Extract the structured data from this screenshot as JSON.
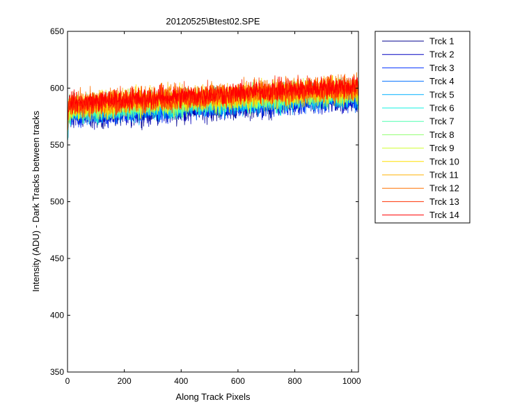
{
  "chart_data": {
    "type": "line",
    "title": "20120525\\Btest02.SPE",
    "xlabel": "Along Track Pixels",
    "ylabel": "Intensity (ADU) - Dark Tracks between tracks",
    "xlim": [
      0,
      1024
    ],
    "ylim": [
      350,
      650
    ],
    "xticks": [
      0,
      200,
      400,
      600,
      800,
      1000
    ],
    "yticks": [
      350,
      400,
      450,
      500,
      550,
      600,
      650
    ],
    "grid": false,
    "legend_position": "outside-right",
    "series": [
      {
        "name": "Trck 1",
        "color": "#00008F",
        "start": 575,
        "end": 590,
        "noise": 6
      },
      {
        "name": "Trck 2",
        "color": "#0000C0",
        "start": 576,
        "end": 591,
        "noise": 6
      },
      {
        "name": "Trck 3",
        "color": "#0030FF",
        "start": 577,
        "end": 592,
        "noise": 6
      },
      {
        "name": "Trck 4",
        "color": "#0070FF",
        "start": 578,
        "end": 593,
        "noise": 6
      },
      {
        "name": "Trck 5",
        "color": "#00B0FF",
        "start": 579,
        "end": 594,
        "noise": 6
      },
      {
        "name": "Trck 6",
        "color": "#10F0E0",
        "start": 580,
        "end": 595,
        "noise": 6
      },
      {
        "name": "Trck 7",
        "color": "#50FFB0",
        "start": 581,
        "end": 596,
        "noise": 6
      },
      {
        "name": "Trck 8",
        "color": "#90FF70",
        "start": 582,
        "end": 597,
        "noise": 6
      },
      {
        "name": "Trck 9",
        "color": "#D0FF30",
        "start": 583,
        "end": 598,
        "noise": 6
      },
      {
        "name": "Trck 10",
        "color": "#FFE000",
        "start": 584,
        "end": 599,
        "noise": 6
      },
      {
        "name": "Trck 11",
        "color": "#FFB000",
        "start": 585,
        "end": 600,
        "noise": 6
      },
      {
        "name": "Trck 12",
        "color": "#FF7000",
        "start": 586,
        "end": 601,
        "noise": 6
      },
      {
        "name": "Trck 13",
        "color": "#FF3000",
        "start": 586,
        "end": 601,
        "noise": 6
      },
      {
        "name": "Trck 14",
        "color": "#FF0000",
        "start": 587,
        "end": 602,
        "noise": 5
      }
    ]
  }
}
